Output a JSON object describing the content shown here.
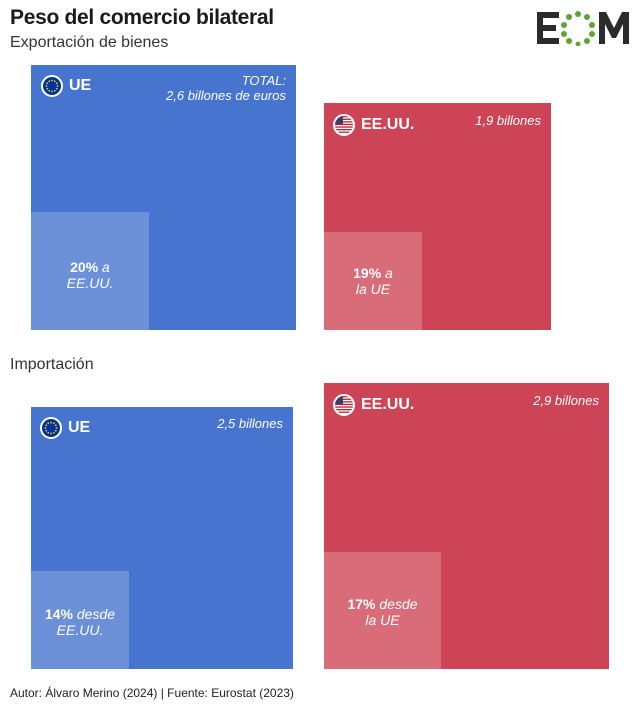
{
  "header": {
    "title": "Peso del comercio bilateral",
    "subtitle": "Exportación de bienes",
    "section2": "Importación"
  },
  "logo": {
    "text": "EOM",
    "name": "eom-logo"
  },
  "footer": "Autor: Álvaro Merino (2024) | Fuente: Eurostat (2023)",
  "colors": {
    "eu": "#4674cf",
    "eu_inner": "#6b90d8",
    "us": "#cc4455",
    "us_inner": "#d86c79",
    "logo_green": "#5aa630",
    "logo_dark": "#2b2b2b"
  },
  "panels": {
    "exp_eu": {
      "label": "UE",
      "total_line1": "TOTAL:",
      "total_line2": "2,6 billones de euros",
      "share_bold": "20%",
      "share_line1_rest": " a",
      "share_line2": "EE.UU."
    },
    "exp_us": {
      "label": "EE.UU.",
      "total_line1": "1,9 billones",
      "share_bold": "19%",
      "share_line1_rest": " a",
      "share_line2": "la UE"
    },
    "imp_eu": {
      "label": "UE",
      "total_line1": "2,5 billones",
      "share_bold": "14%",
      "share_line1_rest": " desde",
      "share_line2": "EE.UU."
    },
    "imp_us": {
      "label": "EE.UU.",
      "total_line1": "2,9 billones",
      "share_bold": "17%",
      "share_line1_rest": " desde",
      "share_line2": "la UE"
    }
  },
  "chart_data": {
    "type": "treemap",
    "unit": "billones de euros",
    "exports": [
      {
        "region": "UE",
        "total": 2.6,
        "share_pct": 20,
        "partner": "EE.UU."
      },
      {
        "region": "EE.UU.",
        "total": 1.9,
        "share_pct": 19,
        "partner": "la UE"
      }
    ],
    "imports": [
      {
        "region": "UE",
        "total": 2.5,
        "share_pct": 14,
        "partner": "EE.UU."
      },
      {
        "region": "EE.UU.",
        "total": 2.9,
        "share_pct": 17,
        "partner": "la UE"
      }
    ]
  }
}
